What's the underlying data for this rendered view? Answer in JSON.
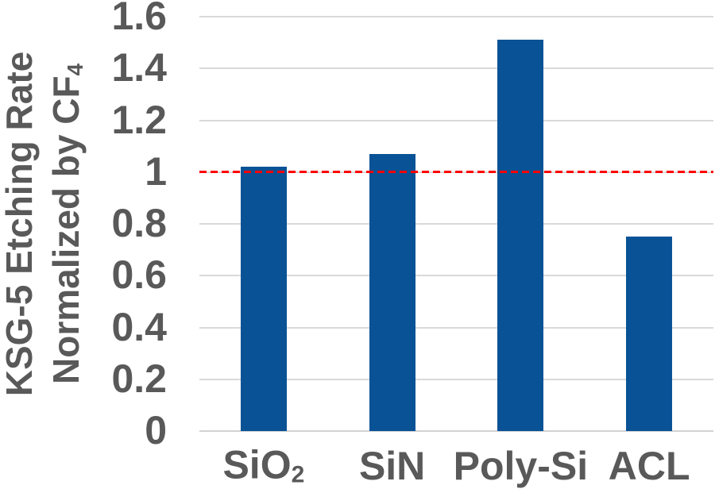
{
  "chart_data": {
    "type": "bar",
    "title": "",
    "categories": [
      "SiO2",
      "SiN",
      "Poly-Si",
      "ACL"
    ],
    "category_parts": [
      {
        "base": "SiO",
        "sub": "2"
      },
      {
        "base": "SiN",
        "sub": ""
      },
      {
        "base": "Poly-Si",
        "sub": ""
      },
      {
        "base": "ACL",
        "sub": ""
      }
    ],
    "values": [
      1.02,
      1.07,
      1.51,
      0.75
    ],
    "xlabel": "",
    "ylabel": "KSG-5 Etching Rate Normalized by CF4",
    "ylabel_lines": [
      {
        "base": "KSG-5 Etching Rate",
        "sub": ""
      },
      {
        "base": "Normalized by CF",
        "sub": "4"
      }
    ],
    "yticks": [
      0,
      0.2,
      0.4,
      0.6,
      0.8,
      1,
      1.2,
      1.4,
      1.6
    ],
    "ylim": [
      0,
      1.6
    ],
    "grid": true,
    "legend": false,
    "reference_line": {
      "value": 1,
      "style": "dashed",
      "color": "#ff0000"
    },
    "colors": {
      "bar": "#0a5296",
      "gridline": "#d9d9d9",
      "axis_line": "#d2d2d2",
      "text": "#595959",
      "reference": "#ff0000"
    }
  }
}
